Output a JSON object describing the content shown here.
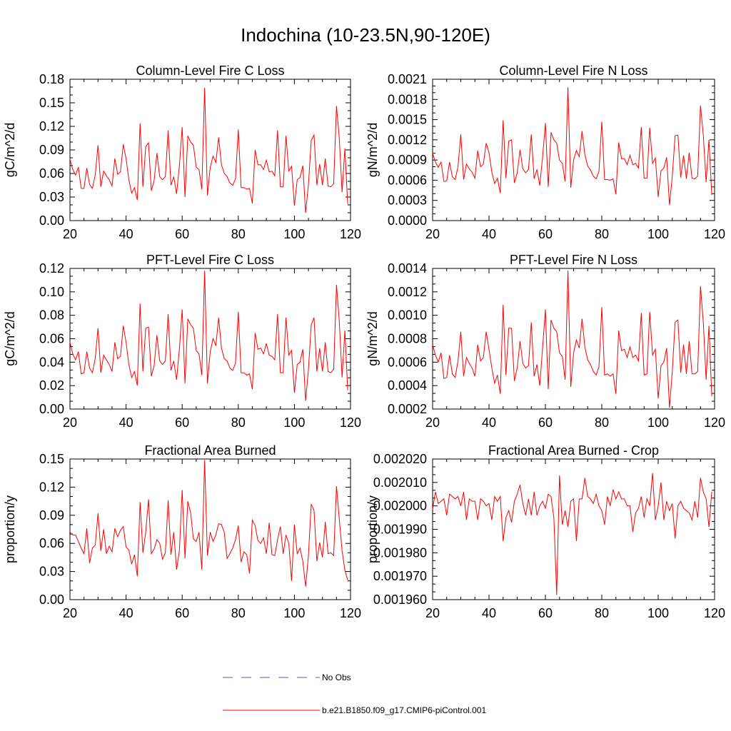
{
  "page": {
    "title": "Indochina (10-23.5N,90-120E)"
  },
  "legend": {
    "obs_label": "No Obs",
    "obs_color": "#4b5fa8",
    "model_label": "b.e21.B1850.f09_g17.CMIP6-piControl.001",
    "model_color": "#ff0000"
  },
  "chart_data": [
    {
      "type": "line",
      "title": "Column-Level Fire C Loss",
      "ylabel": "gC/m^2/d",
      "xlabel": "",
      "xlim": [
        20,
        120
      ],
      "xticks": [
        20,
        40,
        60,
        80,
        100,
        120
      ],
      "xtick_labels": [
        "20",
        "40",
        "60",
        "80",
        "100",
        "120"
      ],
      "ylim": [
        0,
        0.18
      ],
      "yticks": [
        0,
        0.03,
        0.06,
        0.09,
        0.12,
        0.15,
        0.18
      ],
      "ytick_labels": [
        "0.00",
        "0.03",
        "0.06",
        "0.09",
        "0.12",
        "0.15",
        "0.18"
      ],
      "series": [
        {
          "name": "b.e21.B1850.f09_g17.CMIP6-piControl.001",
          "x_start": 20,
          "values": [
            0.078,
            0.065,
            0.058,
            0.068,
            0.041,
            0.041,
            0.067,
            0.046,
            0.041,
            0.058,
            0.096,
            0.043,
            0.063,
            0.057,
            0.052,
            0.044,
            0.079,
            0.059,
            0.062,
            0.097,
            0.079,
            0.052,
            0.035,
            0.042,
            0.026,
            0.124,
            0.043,
            0.094,
            0.099,
            0.038,
            0.051,
            0.086,
            0.056,
            0.052,
            0.056,
            0.115,
            0.045,
            0.056,
            0.034,
            0.07,
            0.119,
            0.03,
            0.108,
            0.1,
            0.096,
            0.068,
            0.065,
            0.04,
            0.169,
            0.032,
            0.068,
            0.082,
            0.074,
            0.106,
            0.071,
            0.06,
            0.056,
            0.048,
            0.045,
            0.053,
            0.116,
            0.042,
            0.042,
            0.04,
            0.041,
            0.022,
            0.09,
            0.071,
            0.071,
            0.065,
            0.077,
            0.062,
            0.063,
            0.057,
            0.115,
            0.043,
            0.043,
            0.108,
            0.063,
            0.069,
            0.019,
            0.052,
            0.055,
            0.07,
            0.01,
            0.046,
            0.102,
            0.109,
            0.045,
            0.072,
            0.045,
            0.079,
            0.044,
            0.043,
            0.047,
            0.146,
            0.105,
            0.036,
            0.092,
            0.021
          ]
        }
      ]
    },
    {
      "type": "line",
      "title": "Column-Level Fire N Loss",
      "ylabel": "gN/m^2/d",
      "xlabel": "",
      "xlim": [
        20,
        120
      ],
      "xticks": [
        20,
        40,
        60,
        80,
        100,
        120
      ],
      "xtick_labels": [
        "20",
        "40",
        "60",
        "80",
        "100",
        "120"
      ],
      "ylim": [
        0,
        0.0021
      ],
      "yticks": [
        0,
        0.0003,
        0.0006,
        0.0009,
        0.0012,
        0.0015,
        0.0018,
        0.0021
      ],
      "ytick_labels": [
        "0.0000",
        "0.0003",
        "0.0006",
        "0.0009",
        "0.0012",
        "0.0015",
        "0.0018",
        "0.0021"
      ],
      "series": [
        {
          "name": "b.e21.B1850.f09_g17.CMIP6-piControl.001",
          "x_start": 20,
          "values": [
            0.001,
            0.00087,
            0.00079,
            0.00087,
            0.00058,
            0.00059,
            0.00087,
            0.00065,
            0.00061,
            0.0008,
            0.00128,
            0.00061,
            0.00084,
            0.00077,
            0.00072,
            0.00063,
            0.00104,
            0.0008,
            0.00084,
            0.00115,
            0.00101,
            0.00072,
            0.00055,
            0.00063,
            0.00041,
            0.00149,
            0.00063,
            0.00118,
            0.0012,
            0.00056,
            0.00071,
            0.00105,
            0.00077,
            0.00071,
            0.00076,
            0.00128,
            0.00062,
            0.00076,
            0.00052,
            0.00094,
            0.00145,
            0.0005,
            0.00131,
            0.0012,
            0.00115,
            0.0009,
            0.00085,
            0.00058,
            0.00198,
            0.00049,
            0.0009,
            0.00104,
            0.00095,
            0.00133,
            0.00098,
            0.00081,
            0.00075,
            0.00066,
            0.00062,
            0.00073,
            0.00147,
            0.00061,
            0.00061,
            0.0006,
            0.00062,
            0.00039,
            0.00116,
            0.00092,
            0.00092,
            0.00083,
            0.00097,
            0.00083,
            0.00085,
            0.00078,
            0.00139,
            0.00063,
            0.00063,
            0.00138,
            0.00085,
            0.00093,
            0.00035,
            0.00074,
            0.00078,
            0.00094,
            0.00023,
            0.00066,
            0.00126,
            0.00127,
            0.00064,
            0.00097,
            0.00062,
            0.00101,
            0.00063,
            0.00062,
            0.00066,
            0.00171,
            0.00127,
            0.00057,
            0.0012,
            0.00038
          ]
        }
      ]
    },
    {
      "type": "line",
      "title": "PFT-Level Fire C Loss",
      "ylabel": "gC/m^2/d",
      "xlabel": "",
      "xlim": [
        20,
        120
      ],
      "xticks": [
        20,
        40,
        60,
        80,
        100,
        120
      ],
      "xtick_labels": [
        "20",
        "40",
        "60",
        "80",
        "100",
        "120"
      ],
      "ylim": [
        0,
        0.12
      ],
      "yticks": [
        0,
        0.02,
        0.04,
        0.06,
        0.08,
        0.1,
        0.12
      ],
      "ytick_labels": [
        "0.00",
        "0.02",
        "0.04",
        "0.06",
        "0.08",
        "0.10",
        "0.12"
      ],
      "series": [
        {
          "name": "b.e21.B1850.f09_g17.CMIP6-piControl.001",
          "x_start": 20,
          "values": [
            0.057,
            0.047,
            0.042,
            0.049,
            0.03,
            0.031,
            0.049,
            0.035,
            0.031,
            0.043,
            0.069,
            0.031,
            0.046,
            0.042,
            0.038,
            0.032,
            0.057,
            0.043,
            0.045,
            0.071,
            0.057,
            0.038,
            0.027,
            0.032,
            0.02,
            0.09,
            0.032,
            0.069,
            0.07,
            0.028,
            0.037,
            0.063,
            0.041,
            0.038,
            0.041,
            0.081,
            0.033,
            0.041,
            0.025,
            0.051,
            0.085,
            0.022,
            0.077,
            0.072,
            0.069,
            0.05,
            0.047,
            0.029,
            0.118,
            0.022,
            0.049,
            0.06,
            0.054,
            0.078,
            0.052,
            0.043,
            0.041,
            0.035,
            0.033,
            0.039,
            0.083,
            0.031,
            0.031,
            0.029,
            0.03,
            0.017,
            0.065,
            0.051,
            0.052,
            0.047,
            0.056,
            0.046,
            0.045,
            0.042,
            0.081,
            0.031,
            0.031,
            0.078,
            0.046,
            0.05,
            0.014,
            0.038,
            0.04,
            0.051,
            0.007,
            0.034,
            0.072,
            0.078,
            0.032,
            0.052,
            0.032,
            0.057,
            0.032,
            0.031,
            0.034,
            0.106,
            0.075,
            0.027,
            0.067,
            0.016
          ]
        }
      ]
    },
    {
      "type": "line",
      "title": "PFT-Level Fire N Loss",
      "ylabel": "gN/m^2/d",
      "xlabel": "",
      "xlim": [
        20,
        120
      ],
      "xticks": [
        20,
        40,
        60,
        80,
        100,
        120
      ],
      "xtick_labels": [
        "20",
        "40",
        "60",
        "80",
        "100",
        "120"
      ],
      "ylim": [
        0.0002,
        0.0014
      ],
      "yticks": [
        0.0002,
        0.0004,
        0.0006,
        0.0008,
        0.001,
        0.0012,
        0.0014
      ],
      "ytick_labels": [
        "0.0002",
        "0.0004",
        "0.0006",
        "0.0008",
        "0.0010",
        "0.0012",
        "0.0014"
      ],
      "series": [
        {
          "name": "b.e21.B1850.f09_g17.CMIP6-piControl.001",
          "x_start": 20,
          "values": [
            0.00075,
            0.00066,
            0.0006,
            0.00068,
            0.00046,
            0.00047,
            0.00066,
            0.0005,
            0.00047,
            0.00061,
            0.00086,
            0.00048,
            0.00064,
            0.00059,
            0.00055,
            0.00048,
            0.00075,
            0.00061,
            0.00064,
            0.00086,
            0.00071,
            0.00055,
            0.00042,
            0.00049,
            0.00033,
            0.00109,
            0.00049,
            0.00089,
            0.00089,
            0.00044,
            0.00055,
            0.00078,
            0.00059,
            0.00055,
            0.00057,
            0.00094,
            0.00048,
            0.00058,
            0.0004,
            0.00072,
            0.00105,
            0.00037,
            0.00096,
            0.00089,
            0.00086,
            0.00068,
            0.00065,
            0.00045,
            0.00138,
            0.00039,
            0.00068,
            0.00079,
            0.00072,
            0.00097,
            0.00073,
            0.00062,
            0.00058,
            0.00052,
            0.00049,
            0.00056,
            0.00107,
            0.00049,
            0.0005,
            0.00048,
            0.0005,
            0.00033,
            0.00087,
            0.0007,
            0.00071,
            0.00064,
            0.00073,
            0.00064,
            0.00066,
            0.00061,
            0.00102,
            0.00049,
            0.0005,
            0.00103,
            0.00066,
            0.00071,
            0.00029,
            0.00057,
            0.0006,
            0.00072,
            0.00021,
            0.00052,
            0.00094,
            0.00096,
            0.00051,
            0.00075,
            0.0005,
            0.00078,
            0.0005,
            0.0005,
            0.00052,
            0.00125,
            0.00094,
            0.00045,
            0.00091,
            0.00031
          ]
        }
      ]
    },
    {
      "type": "line",
      "title": "Fractional Area Burned",
      "ylabel": "proportion/y",
      "xlabel": "",
      "xlim": [
        20,
        120
      ],
      "xticks": [
        20,
        40,
        60,
        80,
        100,
        120
      ],
      "xtick_labels": [
        "20",
        "40",
        "60",
        "80",
        "100",
        "120"
      ],
      "ylim": [
        0,
        0.15
      ],
      "yticks": [
        0,
        0.03,
        0.06,
        0.09,
        0.12,
        0.15
      ],
      "ytick_labels": [
        "0.00",
        "0.03",
        "0.06",
        "0.09",
        "0.12",
        "0.15"
      ],
      "series": [
        {
          "name": "b.e21.B1850.f09_g17.CMIP6-piControl.001",
          "x_start": 20,
          "values": [
            0.072,
            0.069,
            0.069,
            0.062,
            0.055,
            0.049,
            0.076,
            0.039,
            0.055,
            0.058,
            0.092,
            0.052,
            0.075,
            0.049,
            0.057,
            0.051,
            0.076,
            0.067,
            0.074,
            0.078,
            0.056,
            0.053,
            0.038,
            0.048,
            0.025,
            0.104,
            0.05,
            0.072,
            0.107,
            0.049,
            0.054,
            0.064,
            0.06,
            0.043,
            0.05,
            0.106,
            0.048,
            0.072,
            0.032,
            0.052,
            0.117,
            0.044,
            0.105,
            0.093,
            0.065,
            0.062,
            0.072,
            0.032,
            0.149,
            0.047,
            0.072,
            0.062,
            0.069,
            0.081,
            0.08,
            0.072,
            0.044,
            0.049,
            0.055,
            0.064,
            0.079,
            0.04,
            0.051,
            0.048,
            0.028,
            0.085,
            0.079,
            0.063,
            0.06,
            0.066,
            0.049,
            0.082,
            0.048,
            0.047,
            0.064,
            0.078,
            0.049,
            0.069,
            0.06,
            0.02,
            0.08,
            0.049,
            0.055,
            0.041,
            0.014,
            0.047,
            0.102,
            0.095,
            0.041,
            0.061,
            0.045,
            0.083,
            0.049,
            0.05,
            0.047,
            0.121,
            0.086,
            0.052,
            0.031,
            0.021
          ]
        }
      ]
    },
    {
      "type": "line",
      "title": "Fractional Area Burned - Crop",
      "ylabel": "proportion/y",
      "xlabel": "",
      "xlim": [
        20,
        120
      ],
      "xticks": [
        20,
        40,
        60,
        80,
        100,
        120
      ],
      "xtick_labels": [
        "20",
        "40",
        "60",
        "80",
        "100",
        "120"
      ],
      "ylim": [
        0.00196,
        0.00202
      ],
      "yticks": [
        0.00196,
        0.00197,
        0.00198,
        0.00199,
        0.002,
        0.00201,
        0.00202
      ],
      "ytick_labels": [
        "0.001960",
        "0.001970",
        "0.001980",
        "0.001990",
        "0.002000",
        "0.002010",
        "0.002020"
      ],
      "series": [
        {
          "name": "b.e21.B1850.f09_g17.CMIP6-piControl.001",
          "x_start": 20,
          "values": [
            0.0019985,
            0.002006,
            0.002001,
            0.002002,
            0.002003,
            0.001996,
            0.002005,
            0.002004,
            0.002003,
            0.002004,
            0.002,
            0.002006,
            0.001994,
            0.002003,
            0.002002,
            0.002002,
            0.001994,
            0.002003,
            0.002002,
            0.002,
            0.002001,
            0.001994,
            0.002004,
            0.002002,
            0.002004,
            0.001985,
            0.001995,
            0.001998,
            0.001993,
            0.002002,
            0.002005,
            0.002009,
            0.002001,
            0.001996,
            0.002003,
            0.001996,
            0.002006,
            0.001996,
            0.002,
            0.002002,
            0.001999,
            0.002005,
            0.002004,
            0.001995,
            0.001962,
            0.002013,
            0.001992,
            0.001998,
            0.001991,
            0.002002,
            0.002003,
            0.001985,
            0.002003,
            0.002003,
            0.002012,
            0.002004,
            0.002003,
            0.002001,
            0.002005,
            0.002,
            0.001998,
            0.001992,
            0.002004,
            0.002,
            0.002007,
            0.002003,
            0.002006,
            0.002003,
            0.002003,
            0.002,
            0.002,
            0.001989,
            0.001997,
            0.001999,
            0.002004,
            0.001995,
            0.002003,
            0.002,
            0.002014,
            0.001994,
            0.002,
            0.00201,
            0.001994,
            0.002002,
            0.001998,
            0.002001,
            0.001986,
            0.002,
            0.002002,
            0.001999,
            0.001998,
            0.001997,
            0.001994,
            0.002002,
            0.001995,
            0.002012,
            0.002006,
            0.002003,
            0.001991,
            0.002006
          ]
        }
      ]
    }
  ]
}
